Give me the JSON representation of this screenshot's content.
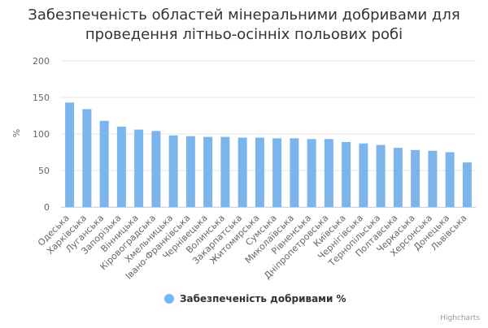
{
  "chart_data": {
    "type": "bar",
    "title_line1": "Забезпеченість областей мінеральними добривами для",
    "title_line2": "проведення літньо-осінніх польових робі",
    "xlabel": "",
    "ylabel": "%",
    "ylim": [
      0,
      200
    ],
    "yticks": [
      0,
      50,
      100,
      150,
      200
    ],
    "grid": true,
    "legend_position": "bottom-center",
    "categories": [
      "Одеська",
      "Харківська",
      "Луганська",
      "Запорізька",
      "Вінницька",
      "Кіровоградська",
      "Хмельницька",
      "Івано-Франківська",
      "Чернівецька",
      "Волинська",
      "Закарпатська",
      "Житомирська",
      "Сумська",
      "Миколаївська",
      "Рівненська",
      "Дніпропетровська",
      "Київська",
      "Чернігівська",
      "Тернопільська",
      "Полтавська",
      "Черкаська",
      "Херсонська",
      "Донецька",
      "Львівська"
    ],
    "series": [
      {
        "name": "Забезпеченість добривами %",
        "color": "#7cb5ec",
        "values": [
          143,
          134,
          118,
          110,
          106,
          104,
          98,
          97,
          96,
          96,
          95,
          95,
          94,
          94,
          93,
          93,
          89,
          87,
          85,
          81,
          78,
          77,
          75,
          61
        ]
      }
    ]
  },
  "credits": "Highcharts",
  "colors": {
    "bar": "#7cb5ec",
    "grid": "#e6e6e6",
    "axis_line": "#ccd6eb",
    "text": "#666666",
    "title": "#333333"
  }
}
